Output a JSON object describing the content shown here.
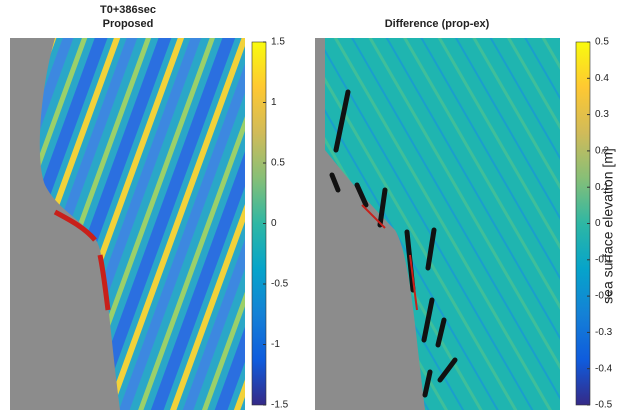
{
  "chart_data": [
    {
      "type": "heatmap",
      "title": "T0+386sec",
      "subtitle": "Proposed",
      "clim": [
        -1.5,
        1.5
      ],
      "cticks": [
        1.5,
        1,
        0.5,
        0,
        -0.5,
        -1,
        -1.5
      ],
      "colormap": [
        "#352a87",
        "#0f5cdd",
        "#1481d6",
        "#06a4ca",
        "#2eb7a4",
        "#87bf77",
        "#d1bb59",
        "#fec832",
        "#f9fb0e"
      ]
    },
    {
      "type": "heatmap",
      "title": "Difference (prop-ex)",
      "clim": [
        -0.5,
        0.5
      ],
      "cticks": [
        0.5,
        0.4,
        0.3,
        0.2,
        0.1,
        0,
        -0.1,
        -0.2,
        -0.3,
        -0.4,
        -0.5
      ],
      "colorbar_label": "sea surface elevation [m]",
      "colormap": [
        "#352a87",
        "#0f5cdd",
        "#1481d6",
        "#06a4ca",
        "#2eb7a4",
        "#87bf77",
        "#d1bb59",
        "#fec832",
        "#f9fb0e"
      ]
    }
  ]
}
